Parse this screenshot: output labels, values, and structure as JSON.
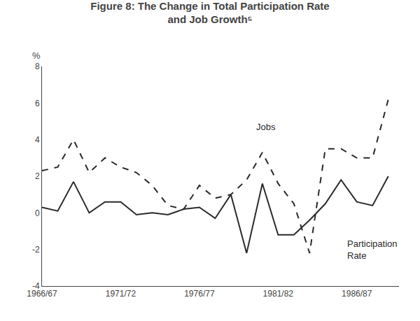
{
  "chart_data": {
    "type": "line",
    "title": "Figure 8: The Change in Total Participation Rate\nand Job Growth⁵",
    "ylabel": "%",
    "categories": [
      "1966/67",
      null,
      null,
      null,
      null,
      "1971/72",
      null,
      null,
      null,
      null,
      "1976/77",
      null,
      null,
      null,
      null,
      "1981/82",
      null,
      null,
      null,
      null,
      "1986/87",
      null,
      null
    ],
    "series": [
      {
        "name": "Jobs",
        "color": "#2a2a2a",
        "line_style": "dashed",
        "values": [
          2.3,
          2.5,
          4.0,
          2.2,
          3.0,
          2.5,
          2.2,
          1.5,
          0.4,
          0.2,
          1.5,
          0.8,
          1.0,
          1.8,
          3.3,
          1.6,
          0.5,
          -2.2,
          3.5,
          3.5,
          3.0,
          3.0,
          6.2
        ]
      },
      {
        "name": "Participation\nRate",
        "color": "#2a2a2a",
        "line_style": "solid",
        "values": [
          0.3,
          0.1,
          1.7,
          0.0,
          0.6,
          0.6,
          -0.1,
          0.0,
          -0.1,
          0.2,
          0.3,
          -0.3,
          1.0,
          -2.2,
          1.6,
          -1.2,
          -1.2,
          -0.4,
          0.5,
          1.8,
          0.6,
          0.4,
          2.0
        ]
      }
    ],
    "annotations": [
      {
        "text": "Jobs",
        "x": 13.5,
        "y": 4.7
      },
      {
        "text": "Participation\nRate",
        "x": 19.3,
        "y": -2.0
      }
    ],
    "ylim": [
      -4,
      8
    ],
    "yticks": [
      -4,
      -2,
      0,
      2,
      4,
      6,
      8
    ],
    "grid": false
  }
}
